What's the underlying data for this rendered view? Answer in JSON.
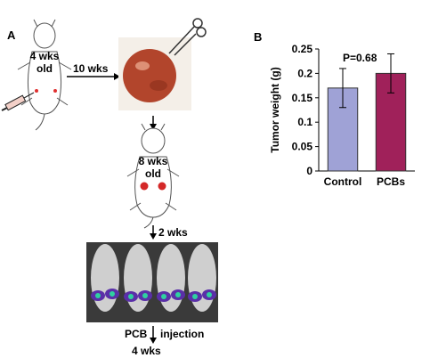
{
  "panels": {
    "a": "A",
    "b": "B"
  },
  "schematic": {
    "mouse1_age": "4 wks\nold",
    "arrow1_label": "10 wks",
    "mouse2_age": "8 wks\nold",
    "arrow2_label": "2 wks",
    "bottom_left": "PCB",
    "bottom_right": "injection",
    "bottom_final": "4 wks"
  },
  "colors": {
    "control": "#9fa2d6",
    "pcbs": "#a0215a",
    "tumor": "#b2452c",
    "luminescence": "#5a2fa8"
  },
  "chart_data": {
    "type": "bar",
    "categories": [
      "Control",
      "PCBs"
    ],
    "values": [
      0.17,
      0.2
    ],
    "errors": [
      0.04,
      0.04
    ],
    "ylabel": "Tumor weight (g)",
    "xlabel": "",
    "ylim": [
      0,
      0.25
    ],
    "yticks": [
      0,
      0.05,
      0.1,
      0.15,
      0.2,
      0.25
    ],
    "ytick_labels": [
      "0",
      "0.05",
      "0.1",
      "0.15",
      "0.2",
      "0.25"
    ],
    "annotation": "P=0.68",
    "grid": false
  }
}
